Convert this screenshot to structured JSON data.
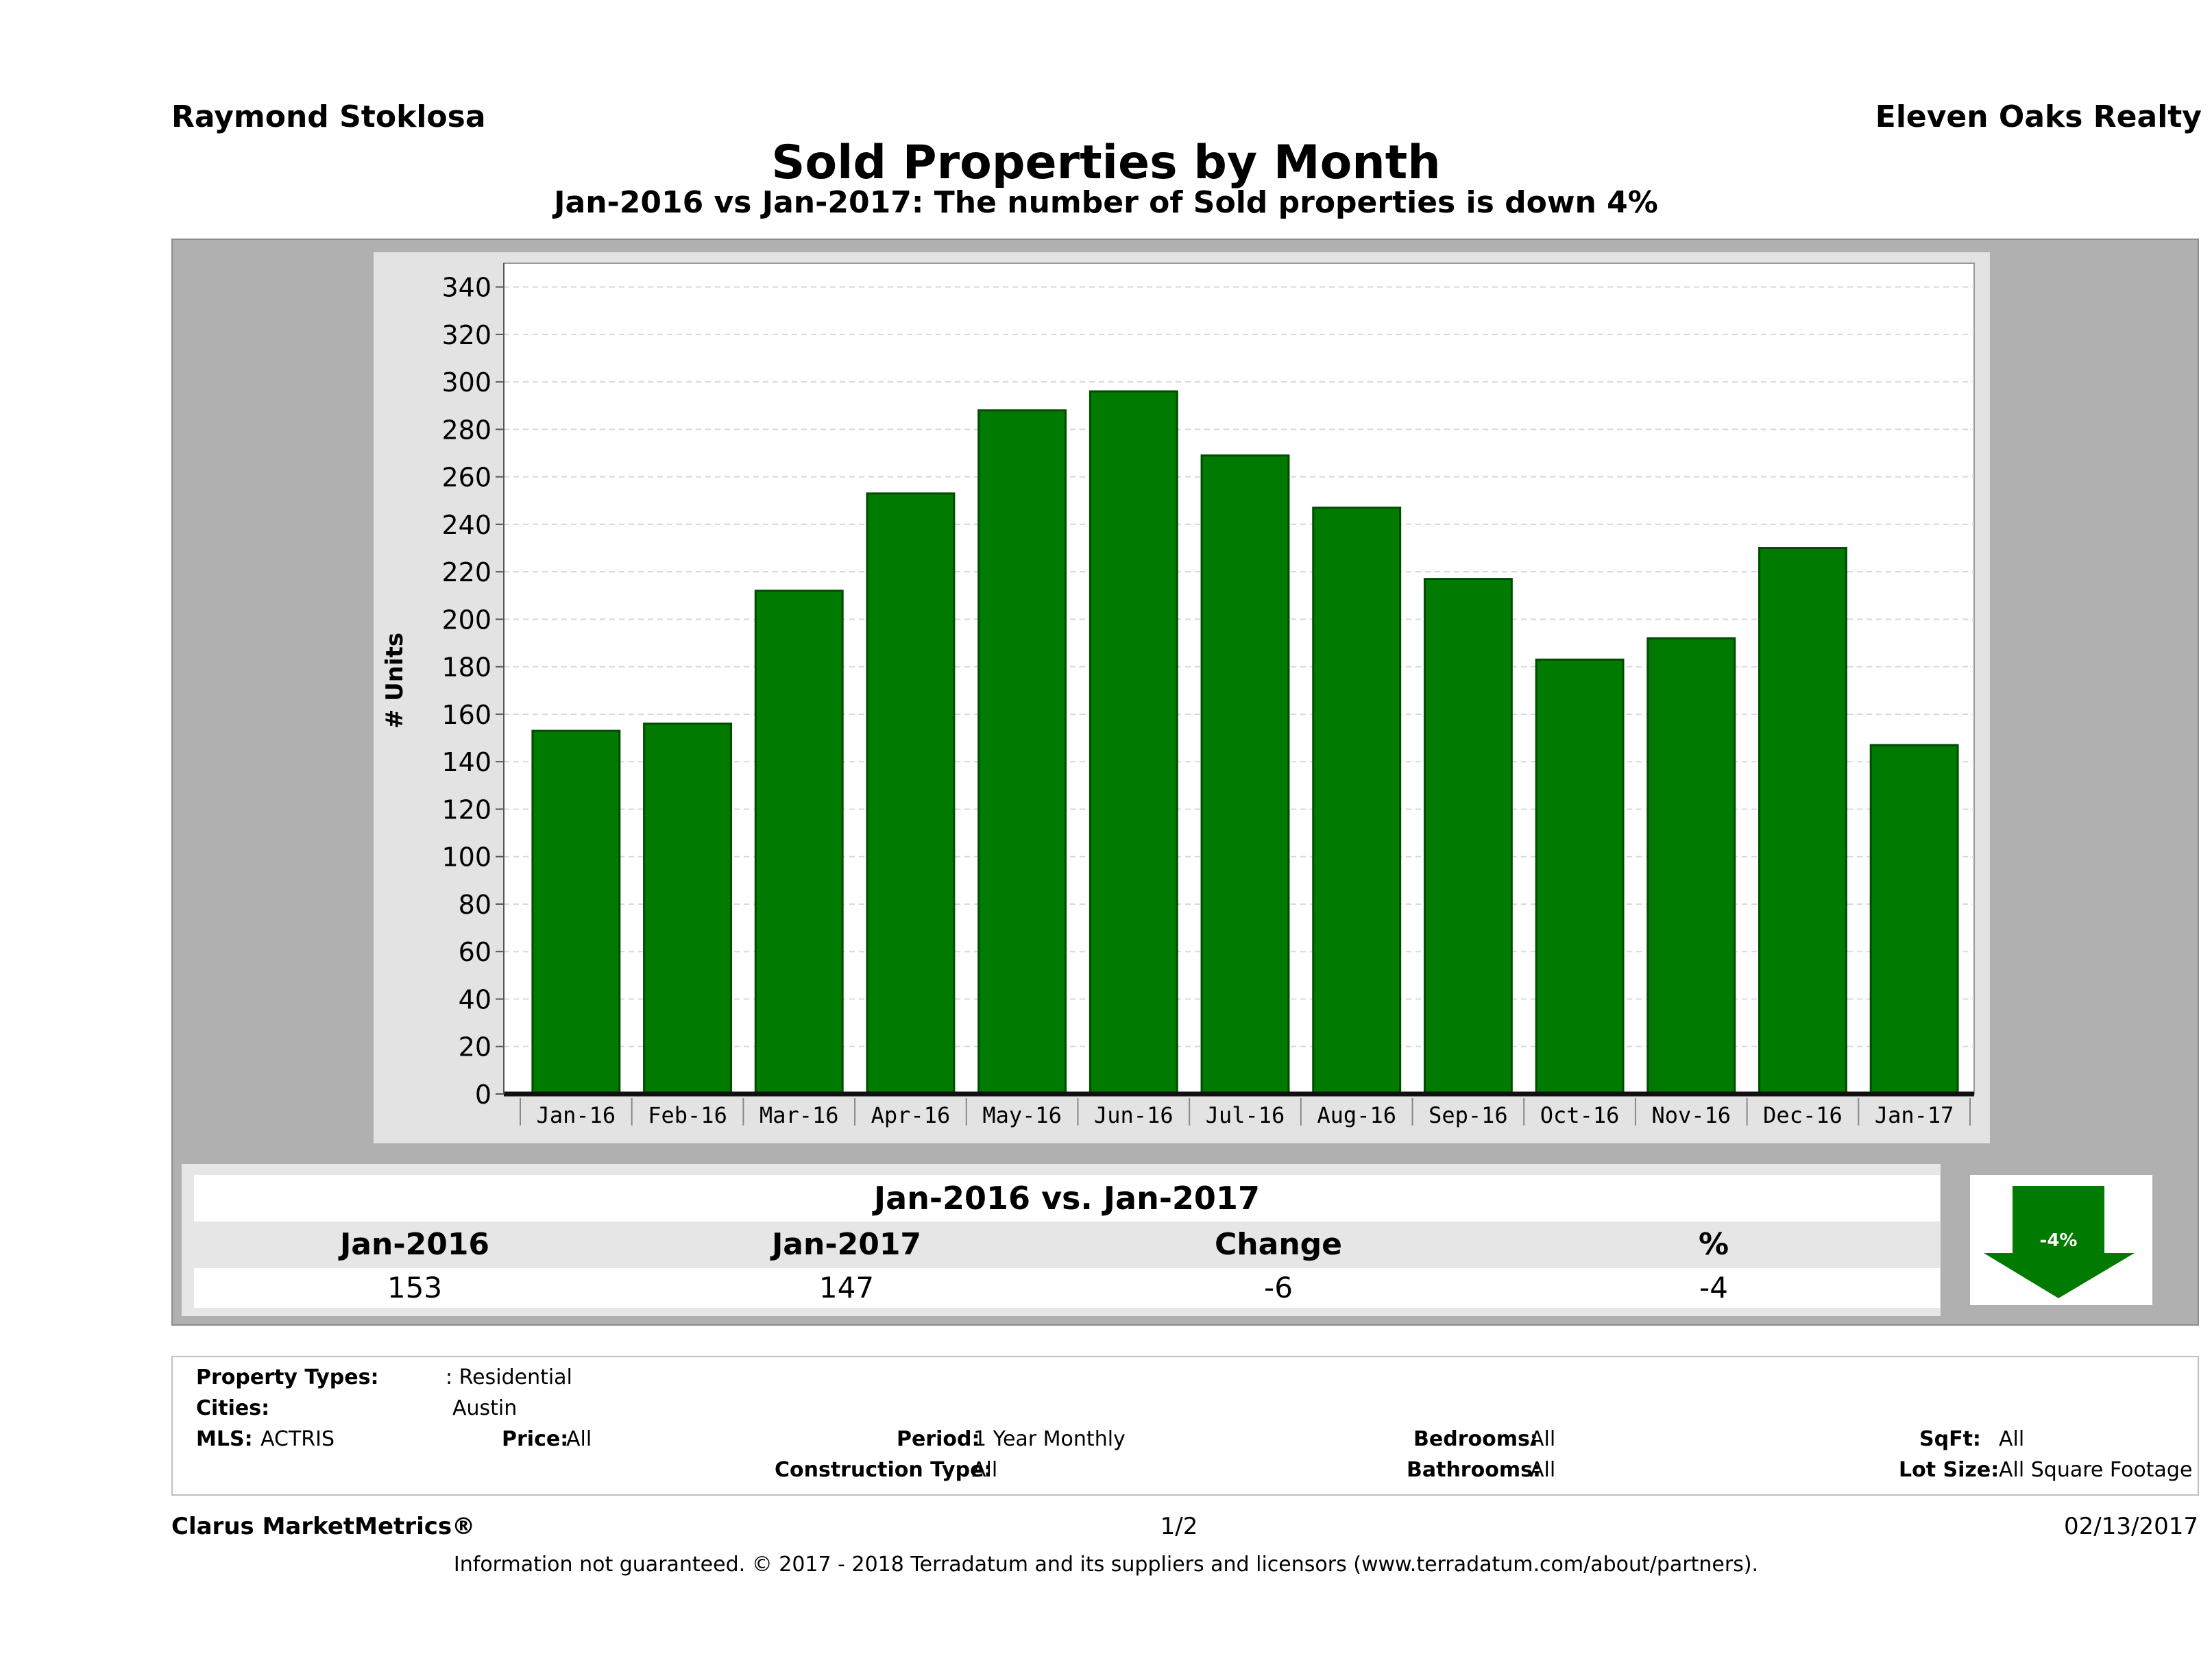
{
  "header": {
    "agent": "Raymond Stoklosa",
    "company": "Eleven Oaks Realty",
    "title": "Sold Properties by Month",
    "subtitle": "Jan-2016 vs Jan-2017: The number of Sold  properties is down 4%"
  },
  "chart_data": {
    "type": "bar",
    "title": "Sold Properties by Month",
    "ylabel": "# Units",
    "xlabel": "",
    "categories": [
      "Jan-16",
      "Feb-16",
      "Mar-16",
      "Apr-16",
      "May-16",
      "Jun-16",
      "Jul-16",
      "Aug-16",
      "Sep-16",
      "Oct-16",
      "Nov-16",
      "Dec-16",
      "Jan-17"
    ],
    "values": [
      153,
      156,
      212,
      253,
      288,
      296,
      269,
      247,
      217,
      183,
      192,
      230,
      147
    ],
    "ylim": [
      0,
      350
    ],
    "yticks": [
      0,
      20,
      40,
      60,
      80,
      100,
      120,
      140,
      160,
      180,
      200,
      220,
      240,
      260,
      280,
      300,
      320,
      340
    ],
    "grid": true,
    "bar_color": "#007a00"
  },
  "comparison": {
    "title": "Jan-2016 vs. Jan-2017",
    "headers": [
      "Jan-2016",
      "Jan-2017",
      "Change",
      "%"
    ],
    "values": [
      "153",
      "147",
      "-6",
      "-4"
    ],
    "badge": "-4%",
    "badge_color": "#007a00"
  },
  "filters": {
    "property_types_label": "Property Types:",
    "property_types_value": ": Residential",
    "cities_label": "Cities:",
    "cities_value": "Austin",
    "mls_label": "MLS:",
    "mls_value": "ACTRIS",
    "price_label": "Price:",
    "price_value": "All",
    "period_label": "Period:",
    "period_value": "1 Year Monthly",
    "construction_label": "Construction Type:",
    "construction_value": "All",
    "bedrooms_label": "Bedrooms:",
    "bedrooms_value": "All",
    "bathrooms_label": "Bathrooms:",
    "bathrooms_value": "All",
    "sqft_label": "SqFt:",
    "sqft_value": "All",
    "lot_label": "Lot Size:",
    "lot_value": "All Square Footage"
  },
  "footer": {
    "brand": "Clarus MarketMetrics®",
    "page": "1/2",
    "date": "02/13/2017",
    "disclaimer": "Information not guaranteed. © 2017 - 2018 Terradatum and its suppliers and licensors (www.terradatum.com/about/partners)."
  }
}
